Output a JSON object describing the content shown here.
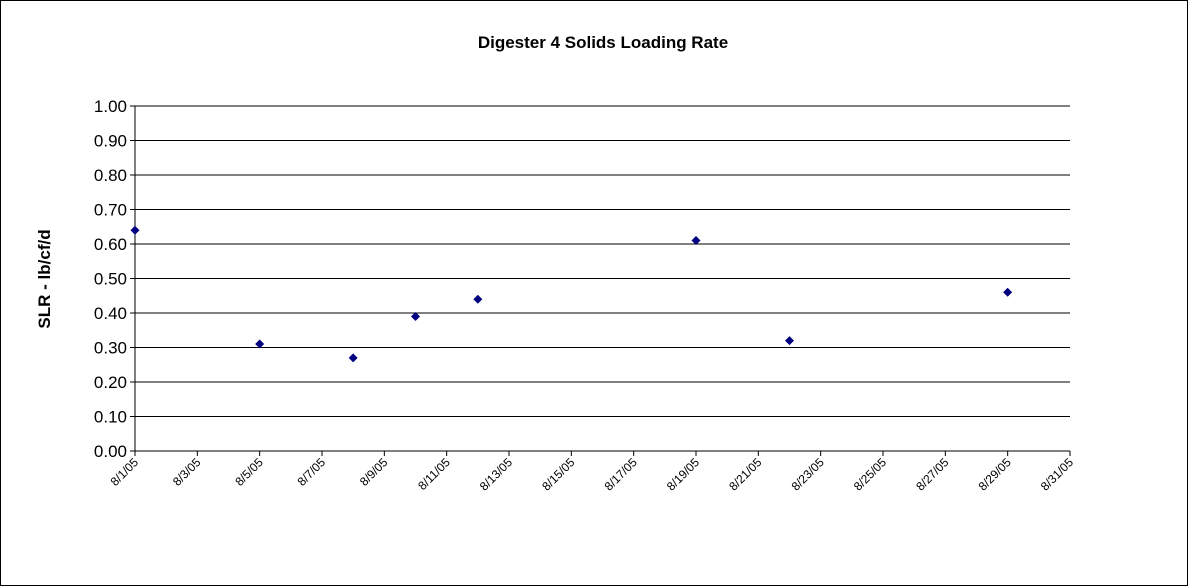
{
  "chart_data": {
    "type": "scatter",
    "title": "Digester 4 Solids Loading Rate",
    "y_label": "SLR - lb/cf/d",
    "x": [
      "8/1/05",
      "8/5/05",
      "8/8/05",
      "8/10/05",
      "8/12/05",
      "8/19/05",
      "8/22/05",
      "8/29/05"
    ],
    "values": [
      0.64,
      0.31,
      0.27,
      0.39,
      0.44,
      0.61,
      0.32,
      0.46
    ],
    "color": "#000080",
    "xlim": [
      "8/1/05",
      "8/31/05"
    ],
    "xticks": [
      "8/1/05",
      "8/3/05",
      "8/5/05",
      "8/7/05",
      "8/9/05",
      "8/11/05",
      "8/13/05",
      "8/15/05",
      "8/17/05",
      "8/19/05",
      "8/21/05",
      "8/23/05",
      "8/25/05",
      "8/27/05",
      "8/29/05",
      "8/31/05"
    ],
    "ylim": [
      0,
      1
    ],
    "yticks": [
      {
        "value": 0,
        "label": "0.00"
      },
      {
        "value": 0.1,
        "label": "0.10"
      },
      {
        "value": 0.2,
        "label": "0.20"
      },
      {
        "value": 0.3,
        "label": "0.30"
      },
      {
        "value": 0.4,
        "label": "0.40"
      },
      {
        "value": 0.5,
        "label": "0.50"
      },
      {
        "value": 0.6,
        "label": "0.60"
      },
      {
        "value": 0.7,
        "label": "0.70"
      },
      {
        "value": 0.8,
        "label": "0.80"
      },
      {
        "value": 0.9,
        "label": "0.90"
      },
      {
        "value": 1,
        "label": "1.00"
      }
    ],
    "grid": true
  }
}
